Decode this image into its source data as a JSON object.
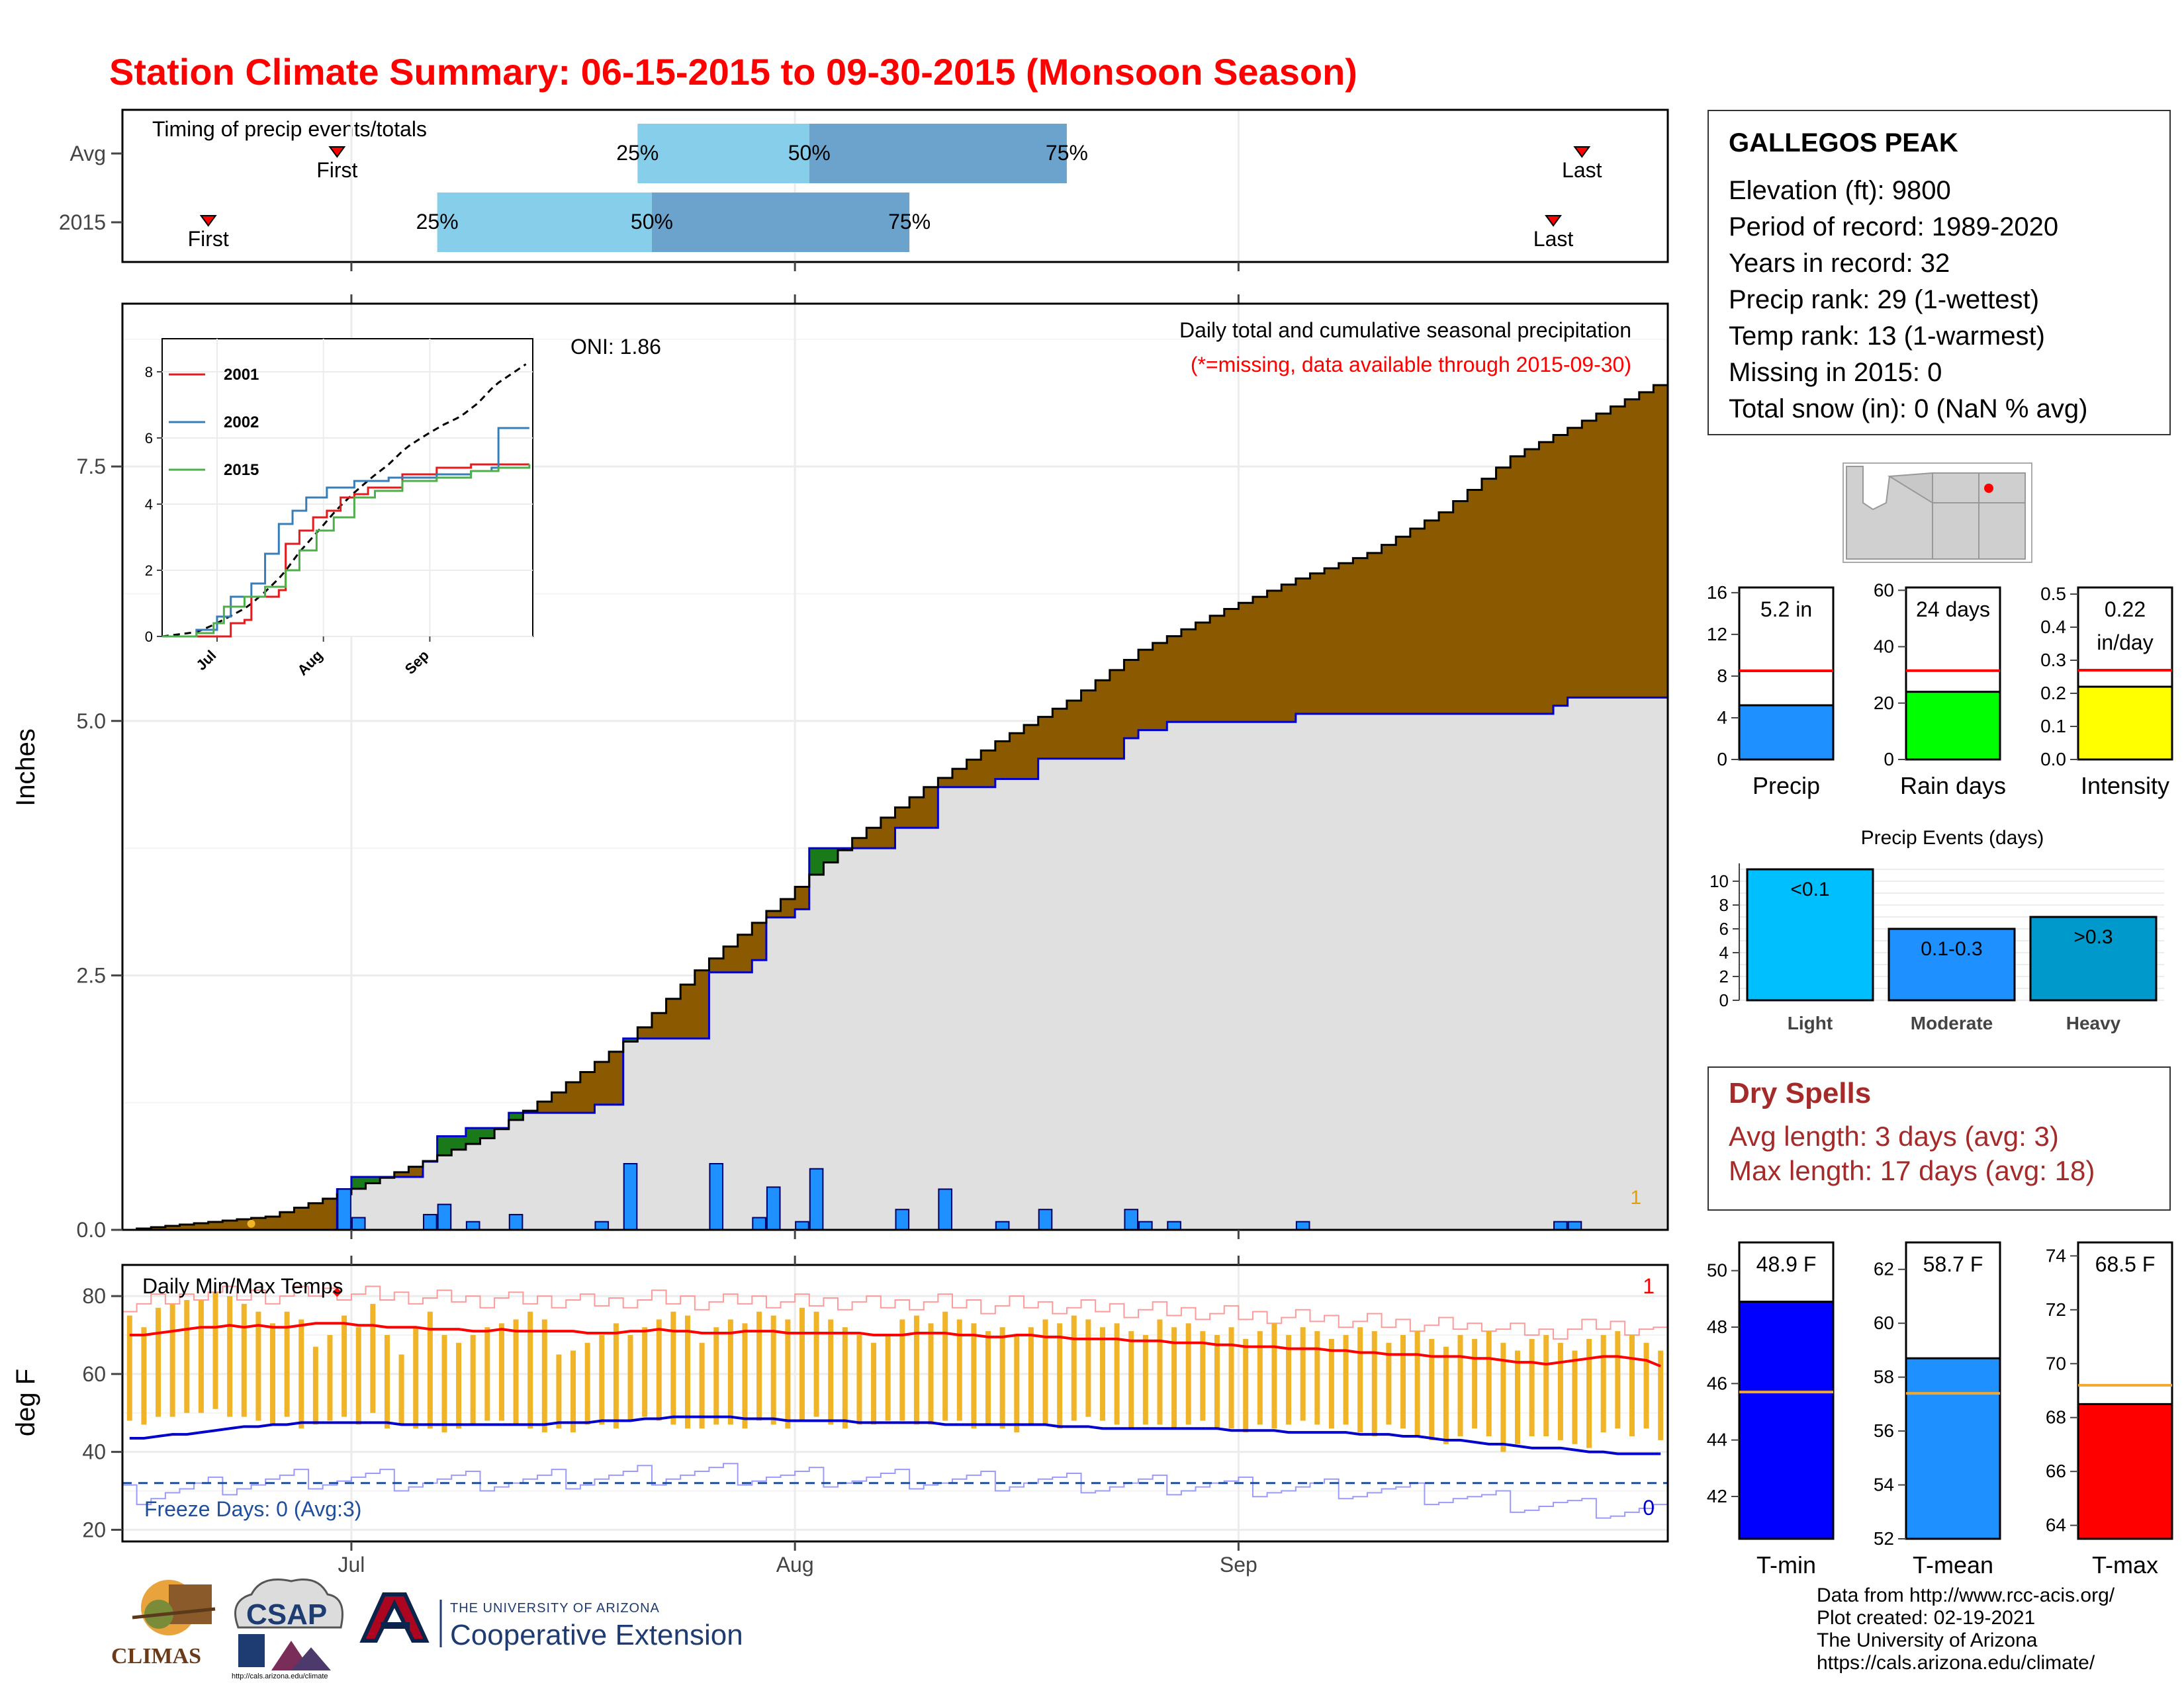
{
  "title": "Station Climate Summary: 06-15-2015 to 09-30-2015 (Monsoon Season)",
  "colors": {
    "title": "#ff0000",
    "cum_precip_fill": "#8b5a00",
    "above_avg_fill": "#1a7a1a",
    "avg_area": "#e0e0e0",
    "avg_line": "#0000cc",
    "daily_bar": "#1e90ff",
    "quartile_light": "#87ceeb",
    "quartile_dark": "#6ba3cc",
    "temp_bar": "#f0b429",
    "tmax_line": "#ff0000",
    "tmin_line": "#0000cc",
    "dry_spell_text": "#a52a2a"
  },
  "timing_panel": {
    "title": "Timing of precip events/totals",
    "rows": [
      {
        "label": "Avg",
        "first_label": "First",
        "last_label": "Last",
        "first_date": "2015-06-30",
        "last_date": "2015-09-25",
        "q25_date": "2015-07-21",
        "q50_date": "2015-08-02",
        "q75_date": "2015-08-20",
        "q25_label": "25%",
        "q50_label": "50%",
        "q75_label": "75%"
      },
      {
        "label": "2015",
        "first_label": "First",
        "last_label": "Last",
        "first_date": "2015-06-21",
        "last_date": "2015-09-23",
        "q25_date": "2015-07-07",
        "q50_date": "2015-07-22",
        "q75_date": "2015-08-09",
        "q25_label": "25%",
        "q50_label": "50%",
        "q75_label": "75%"
      }
    ]
  },
  "precip_panel": {
    "ylabel": "Inches",
    "yticks": [
      "0.0",
      "2.5",
      "5.0",
      "7.5"
    ],
    "ylim": [
      0,
      9.1
    ],
    "note": "Daily total and cumulative seasonal precipitation",
    "missing_note": "(*=missing, data available through 2015-09-30)",
    "oni": "ONI: 1.86",
    "corner_count": "1",
    "inset": {
      "yticks": [
        "0",
        "2",
        "4",
        "6",
        "8"
      ],
      "xticks": [
        "Jul",
        "Aug",
        "Sep"
      ],
      "legend": [
        {
          "name": "2001",
          "color": "#e41a1c"
        },
        {
          "name": "2002",
          "color": "#377eb8"
        },
        {
          "name": "2015",
          "color": "#4daf4a"
        }
      ]
    }
  },
  "temp_panel": {
    "ylabel": "deg F",
    "yticks": [
      "20",
      "40",
      "60",
      "80"
    ],
    "ylim": [
      17,
      88
    ],
    "title": "Daily Min/Max Temps",
    "freeze_label": "Freeze Days: 0 (Avg:3)",
    "max_record_count": "1",
    "min_record_count": "0",
    "freeze_line": 32
  },
  "x_axis": {
    "labels": [
      "Jul",
      "Aug",
      "Sep"
    ]
  },
  "station": {
    "name": "GALLEGOS PEAK",
    "lines": [
      "Elevation (ft): 9800",
      "Period of record: 1989-2020",
      "Years in record: 32",
      "Precip rank: 29 (1-wettest)",
      "Temp rank: 13 (1-warmest)",
      "Missing in 2015: 0",
      "Total snow (in): 0 (NaN % avg)"
    ]
  },
  "summary_bars": [
    {
      "label": "Precip",
      "value_text": "5.2 in",
      "value": 5.2,
      "avg": 8.5,
      "ymax": 16.5,
      "yticks": [
        "0",
        "4",
        "8",
        "12",
        "16"
      ],
      "color": "#1e90ff"
    },
    {
      "label": "Rain days",
      "value_text": "24 days",
      "value": 24,
      "avg": 31.5,
      "ymax": 61,
      "yticks": [
        "0",
        "20",
        "40",
        "60"
      ],
      "color": "#00ff00"
    },
    {
      "label": "Intensity",
      "value_text": "0.22 in/day",
      "value": 0.22,
      "avg": 0.27,
      "ymax": 0.52,
      "yticks": [
        "0.0",
        "0.1",
        "0.2",
        "0.3",
        "0.4",
        "0.5"
      ],
      "color": "#ffff00"
    }
  ],
  "precip_events": {
    "title": "Precip Events (days)",
    "yticks": [
      "0",
      "2",
      "4",
      "6",
      "8",
      "10"
    ],
    "ymax": 11.5,
    "bars": [
      {
        "category": "Light",
        "label": "<0.1",
        "value": 11,
        "color": "#00bfff"
      },
      {
        "category": "Moderate",
        "label": "0.1-0.3",
        "value": 6,
        "color": "#1e90ff"
      },
      {
        "category": "Heavy",
        "label": ">0.3",
        "value": 7,
        "color": "#0099cc"
      }
    ]
  },
  "dry_spells": {
    "title": "Dry Spells",
    "avg_line": "Avg length: 3 days (avg: 3)",
    "max_line": "Max length: 17 days (avg: 18)"
  },
  "temp_bars": [
    {
      "label": "T-min",
      "value_text": "48.9 F",
      "value": 48.9,
      "avg": 45.7,
      "ymin": 40.5,
      "ymax": 51,
      "yticks": [
        "42",
        "44",
        "46",
        "48",
        "50"
      ],
      "color": "#0000ff"
    },
    {
      "label": "T-mean",
      "value_text": "58.7 F",
      "value": 58.7,
      "avg": 57.4,
      "ymin": 52,
      "ymax": 63,
      "yticks": [
        "52",
        "54",
        "56",
        "58",
        "60",
        "62"
      ],
      "color": "#1e90ff"
    },
    {
      "label": "T-max",
      "value_text": "68.5 F",
      "value": 68.5,
      "avg": 69.2,
      "ymin": 63.5,
      "ymax": 74.5,
      "yticks": [
        "64",
        "66",
        "68",
        "70",
        "72",
        "74"
      ],
      "color": "#ff0000"
    }
  ],
  "credits": [
    "Data from http://www.rcc-acis.org/",
    "Plot created: 02-19-2021",
    "The University of Arizona",
    "https://cals.arizona.edu/climate/"
  ],
  "logos": {
    "climas": "CLIMAS",
    "csap": "CSAP",
    "csap_url": "http://cals.arizona.edu/climate",
    "ua_small": "THE UNIVERSITY OF ARIZONA",
    "ua_big": "Cooperative Extension"
  },
  "chart_data": {
    "type": "area",
    "period": [
      "2015-06-15",
      "2015-09-30"
    ],
    "daily_precip": [
      {
        "x": "2015-06-30",
        "y": 0.4
      },
      {
        "x": "2015-07-01",
        "y": 0.12
      },
      {
        "x": "2015-07-06",
        "y": 0.15
      },
      {
        "x": "2015-07-07",
        "y": 0.25
      },
      {
        "x": "2015-07-09",
        "y": 0.08
      },
      {
        "x": "2015-07-12",
        "y": 0.15
      },
      {
        "x": "2015-07-18",
        "y": 0.08
      },
      {
        "x": "2015-07-20",
        "y": 0.65
      },
      {
        "x": "2015-07-26",
        "y": 0.65
      },
      {
        "x": "2015-07-29",
        "y": 0.12
      },
      {
        "x": "2015-07-30",
        "y": 0.42
      },
      {
        "x": "2015-08-01",
        "y": 0.08
      },
      {
        "x": "2015-08-02",
        "y": 0.6
      },
      {
        "x": "2015-08-08",
        "y": 0.2
      },
      {
        "x": "2015-08-11",
        "y": 0.4
      },
      {
        "x": "2015-08-15",
        "y": 0.08
      },
      {
        "x": "2015-08-18",
        "y": 0.2
      },
      {
        "x": "2015-08-24",
        "y": 0.2
      },
      {
        "x": "2015-08-25",
        "y": 0.08
      },
      {
        "x": "2015-08-27",
        "y": 0.08
      },
      {
        "x": "2015-09-05",
        "y": 0.08
      },
      {
        "x": "2015-09-23",
        "y": 0.08
      },
      {
        "x": "2015-09-24",
        "y": 0.08
      }
    ],
    "cumulative_avg": [
      {
        "x": "2015-06-15",
        "y": 0.0
      },
      {
        "x": "2015-06-25",
        "y": 0.13
      },
      {
        "x": "2015-06-30",
        "y": 0.35
      },
      {
        "x": "2015-07-05",
        "y": 0.62
      },
      {
        "x": "2015-07-10",
        "y": 0.9
      },
      {
        "x": "2015-07-15",
        "y": 1.35
      },
      {
        "x": "2015-07-20",
        "y": 1.85
      },
      {
        "x": "2015-07-25",
        "y": 2.55
      },
      {
        "x": "2015-07-31",
        "y": 3.25
      },
      {
        "x": "2015-08-05",
        "y": 3.85
      },
      {
        "x": "2015-08-10",
        "y": 4.35
      },
      {
        "x": "2015-08-15",
        "y": 4.8
      },
      {
        "x": "2015-08-20",
        "y": 5.2
      },
      {
        "x": "2015-08-25",
        "y": 5.7
      },
      {
        "x": "2015-08-31",
        "y": 6.1
      },
      {
        "x": "2015-09-05",
        "y": 6.4
      },
      {
        "x": "2015-09-10",
        "y": 6.65
      },
      {
        "x": "2015-09-15",
        "y": 7.05
      },
      {
        "x": "2015-09-20",
        "y": 7.6
      },
      {
        "x": "2015-09-25",
        "y": 7.95
      },
      {
        "x": "2015-09-30",
        "y": 8.3
      }
    ],
    "temps": {
      "daily_max": [
        75,
        72,
        77,
        78,
        79,
        79,
        81,
        80,
        78,
        76,
        73,
        76,
        74,
        67,
        70,
        75,
        72,
        78,
        70,
        65,
        72,
        76,
        70,
        68,
        70,
        72,
        73,
        74,
        76,
        74,
        65,
        66,
        68,
        70,
        73,
        70,
        72,
        74,
        76,
        75,
        68,
        72,
        74,
        73,
        76,
        75,
        74,
        77,
        76,
        74,
        72,
        70,
        68,
        70,
        74,
        75,
        73,
        76,
        74,
        73,
        71,
        72,
        70,
        72,
        74,
        73,
        75,
        74,
        72,
        73,
        71,
        70,
        74,
        72,
        73,
        71,
        70,
        72,
        69,
        71,
        73,
        70,
        72,
        71,
        69,
        70,
        72,
        71,
        68,
        70,
        71,
        69,
        67,
        70,
        69,
        71,
        68,
        66,
        69,
        70,
        68,
        66,
        69,
        70,
        71,
        70,
        68,
        66
      ],
      "daily_min": [
        48,
        47,
        49,
        49,
        50,
        50,
        51,
        49,
        49,
        48,
        47,
        49,
        46,
        47,
        48,
        49,
        47,
        50,
        46,
        47,
        46,
        46,
        45,
        46,
        47,
        48,
        48,
        47,
        46,
        45,
        46,
        45,
        47,
        47,
        46,
        48,
        49,
        48,
        47,
        46,
        46,
        47,
        47,
        46,
        48,
        47,
        46,
        48,
        49,
        47,
        46,
        47,
        47,
        48,
        48,
        47,
        47,
        48,
        48,
        46,
        47,
        46,
        45,
        47,
        47,
        46,
        48,
        49,
        48,
        47,
        46,
        47,
        47,
        46,
        47,
        48,
        46,
        46,
        45,
        47,
        46,
        47,
        48,
        47,
        46,
        47,
        45,
        44,
        47,
        46,
        44,
        43,
        42,
        44,
        46,
        44,
        40,
        42,
        44,
        44,
        43,
        42,
        41,
        45,
        46,
        44,
        46,
        43
      ],
      "normal_max": [
        70,
        70,
        70.5,
        71,
        71.5,
        72,
        72,
        72.5,
        72,
        72.5,
        72,
        72,
        72.5,
        73,
        73,
        73,
        72.5,
        72.5,
        72,
        72,
        72,
        71.5,
        71.5,
        71.5,
        71,
        71,
        71.5,
        71,
        71,
        71,
        71,
        71,
        70.5,
        70.5,
        70.5,
        71,
        71,
        71.5,
        71,
        71,
        70.5,
        70.5,
        70.5,
        71,
        71,
        71,
        70.5,
        70.5,
        70.5,
        70.5,
        70.5,
        70.5,
        70,
        70,
        70,
        70.5,
        70.5,
        70.5,
        70,
        70,
        69.5,
        69.5,
        70,
        70,
        69.5,
        69.5,
        69,
        69,
        69,
        69,
        68.5,
        68.5,
        68.5,
        68,
        68,
        68,
        67.5,
        67.5,
        67,
        67,
        67,
        66.5,
        66.5,
        66.5,
        66,
        66,
        65.5,
        65.5,
        65,
        65,
        65,
        64.5,
        64.5,
        64.5,
        64,
        64,
        63.5,
        63,
        63,
        62.5,
        63,
        63.5,
        64,
        64.5,
        64.5,
        64,
        63.5,
        62
      ],
      "normal_min": [
        43.5,
        43.5,
        44,
        44.5,
        44.5,
        45,
        45.5,
        46,
        46.5,
        46.5,
        47,
        47,
        47.5,
        47.5,
        47.5,
        47.5,
        47.5,
        47.5,
        47.5,
        47,
        47,
        47,
        47,
        47,
        47,
        47,
        47,
        47,
        47,
        47,
        47.5,
        47.5,
        47.5,
        48,
        48,
        48,
        48.5,
        48.5,
        49,
        49,
        49,
        49,
        49,
        48.5,
        48.5,
        48.5,
        48,
        48,
        48,
        48,
        48,
        47.5,
        47.5,
        47.5,
        47.5,
        47.5,
        47.5,
        47,
        47,
        47,
        47,
        47,
        47,
        47,
        47,
        46.5,
        46.5,
        46.5,
        46,
        46,
        46,
        46,
        46,
        46,
        46,
        46,
        46,
        45.5,
        45.5,
        45.5,
        45.5,
        45,
        45,
        45,
        45,
        45,
        44.5,
        44.5,
        44.5,
        44,
        44,
        43.5,
        43,
        43,
        42.5,
        42,
        42,
        41.5,
        41,
        41,
        41,
        40.5,
        40,
        40,
        39.5,
        39.5,
        39.5,
        39.5,
        39.5,
        39
      ]
    }
  }
}
